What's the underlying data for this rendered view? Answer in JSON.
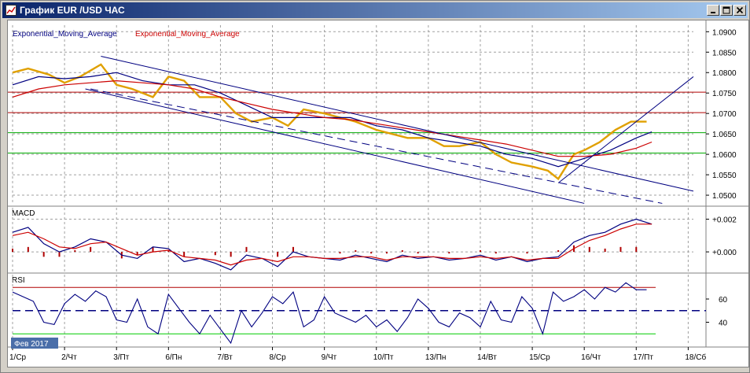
{
  "window": {
    "title": "График EUR /USD  ЧАС",
    "controls": [
      "minimize",
      "maximize",
      "close"
    ]
  },
  "indicators_legend": [
    "Exponential_Moving_Average",
    "Exponential_Moving_Average"
  ],
  "colors": {
    "price": "#e0a000",
    "ema_fast": "#000080",
    "ema_slow": "#cc0000",
    "channel": "#000080",
    "level_red": "#b00000",
    "level_green": "#00aa00",
    "macd_line": "#000080",
    "macd_signal": "#cc0000",
    "macd_hist": "#b00000",
    "rsi_line": "#000080",
    "rsi_oversold": "#00cc00",
    "date_badge": "#4a6ea9"
  },
  "chart_data": [
    {
      "type": "line",
      "name": "price_panel",
      "y_ticks": [
        "1.0900",
        "1.0850",
        "1.0800",
        "1.0750",
        "1.0700",
        "1.0650",
        "1.0600",
        "1.0550",
        "1.0500"
      ],
      "ylim": [
        1.0477,
        1.0916
      ],
      "xlim": [
        0,
        13.1
      ],
      "horizontal_levels": [
        {
          "value": 1.0752,
          "color": "red"
        },
        {
          "value": 1.0702,
          "color": "red"
        },
        {
          "value": 1.0653,
          "color": "green"
        },
        {
          "value": 1.0603,
          "color": "green"
        }
      ],
      "series": [
        {
          "key": "price",
          "x": [
            0.0,
            0.3,
            0.7,
            1.0,
            1.3,
            1.7,
            2.0,
            2.3,
            2.7,
            3.0,
            3.3,
            3.6,
            4.0,
            4.3,
            4.6,
            5.0,
            5.3,
            5.6,
            6.0,
            6.3,
            6.6,
            7.0,
            7.3,
            7.6,
            8.0,
            8.3,
            8.6,
            9.0,
            9.3,
            9.6,
            10.0,
            10.3,
            10.5,
            10.8,
            11.0,
            11.3,
            11.6,
            11.9,
            12.2
          ],
          "values": [
            1.08,
            1.081,
            1.0795,
            1.0775,
            1.079,
            1.082,
            1.077,
            1.076,
            1.074,
            1.079,
            1.078,
            1.074,
            1.074,
            1.07,
            1.068,
            1.069,
            1.067,
            1.071,
            1.07,
            1.069,
            1.068,
            1.066,
            1.065,
            1.064,
            1.064,
            1.062,
            1.062,
            1.063,
            1.06,
            1.058,
            1.057,
            1.056,
            1.054,
            1.06,
            1.061,
            1.063,
            1.066,
            1.068,
            1.068
          ]
        },
        {
          "key": "ema_fast",
          "x": [
            0.0,
            0.5,
            1.0,
            1.5,
            2.0,
            2.5,
            3.0,
            3.5,
            4.0,
            4.5,
            5.0,
            5.5,
            6.0,
            6.5,
            7.0,
            7.5,
            8.0,
            8.5,
            9.0,
            9.5,
            10.0,
            10.5,
            11.0,
            11.5,
            12.0,
            12.3
          ],
          "values": [
            1.077,
            1.079,
            1.0785,
            1.079,
            1.08,
            1.078,
            1.077,
            1.077,
            1.075,
            1.072,
            1.069,
            1.069,
            1.069,
            1.069,
            1.067,
            1.066,
            1.064,
            1.063,
            1.062,
            1.06,
            1.059,
            1.057,
            1.059,
            1.061,
            1.064,
            1.0655
          ]
        },
        {
          "key": "ema_slow",
          "x": [
            0.0,
            0.5,
            1.0,
            1.5,
            2.0,
            2.5,
            3.0,
            3.5,
            4.0,
            4.5,
            5.0,
            5.5,
            6.0,
            6.5,
            7.0,
            7.5,
            8.0,
            8.5,
            9.0,
            9.5,
            10.0,
            10.5,
            11.0,
            11.5,
            12.0,
            12.3
          ],
          "values": [
            1.074,
            1.076,
            1.077,
            1.0775,
            1.078,
            1.0775,
            1.077,
            1.076,
            1.074,
            1.0725,
            1.071,
            1.07,
            1.069,
            1.0685,
            1.0675,
            1.0665,
            1.0655,
            1.0645,
            1.0635,
            1.0625,
            1.061,
            1.0595,
            1.0595,
            1.06,
            1.0615,
            1.063
          ]
        }
      ],
      "trend_lines": [
        {
          "x": [
            1.7,
            13.1
          ],
          "values": [
            1.084,
            1.051
          ],
          "style": "solid"
        },
        {
          "x": [
            1.5,
            12.5
          ],
          "values": [
            1.076,
            1.048
          ],
          "style": "dashed"
        },
        {
          "x": [
            1.4,
            11.0
          ],
          "values": [
            1.076,
            1.048
          ],
          "style": "solid"
        },
        {
          "x": [
            10.5,
            13.1
          ],
          "values": [
            1.053,
            1.079
          ],
          "style": "solid"
        }
      ]
    },
    {
      "type": "line",
      "name": "MACD",
      "title": "MACD",
      "y_ticks": [
        "+0.002",
        "+0.000"
      ],
      "ylim": [
        -0.0012,
        0.0027
      ],
      "xlim": [
        0,
        13.1
      ],
      "series": [
        {
          "key": "macd",
          "x": [
            0.0,
            0.3,
            0.6,
            0.9,
            1.2,
            1.5,
            1.8,
            2.1,
            2.4,
            2.7,
            3.0,
            3.3,
            3.6,
            3.9,
            4.2,
            4.5,
            4.8,
            5.1,
            5.4,
            5.7,
            6.0,
            6.3,
            6.6,
            6.9,
            7.2,
            7.5,
            7.8,
            8.1,
            8.4,
            8.7,
            9.0,
            9.3,
            9.6,
            9.9,
            10.2,
            10.5,
            10.8,
            11.1,
            11.4,
            11.7,
            12.0,
            12.3
          ],
          "values": [
            0.0012,
            0.0015,
            0.0005,
            0.0,
            0.0003,
            0.0008,
            0.0006,
            -0.0002,
            -0.0004,
            0.0003,
            0.0002,
            -0.0006,
            -0.0004,
            -0.0007,
            -0.0011,
            -0.0002,
            -0.0004,
            -0.0009,
            0.0,
            -0.0003,
            -0.0004,
            -0.0005,
            -0.0002,
            -0.0004,
            -0.0006,
            -0.0002,
            -0.0004,
            -0.0003,
            -0.0005,
            -0.0004,
            -0.0002,
            -0.0005,
            -0.0003,
            -0.0006,
            -0.0004,
            -0.0003,
            0.0006,
            0.001,
            0.0012,
            0.0017,
            0.002,
            0.0017
          ]
        },
        {
          "key": "signal",
          "x": [
            0.0,
            0.3,
            0.6,
            0.9,
            1.2,
            1.5,
            1.8,
            2.1,
            2.4,
            2.7,
            3.0,
            3.3,
            3.6,
            3.9,
            4.2,
            4.5,
            4.8,
            5.1,
            5.4,
            5.7,
            6.0,
            6.3,
            6.6,
            6.9,
            7.2,
            7.5,
            7.8,
            8.1,
            8.4,
            8.7,
            9.0,
            9.3,
            9.6,
            9.9,
            10.2,
            10.5,
            10.8,
            11.1,
            11.4,
            11.7,
            12.0,
            12.3
          ],
          "values": [
            0.001,
            0.0012,
            0.0008,
            0.0003,
            0.0002,
            0.0005,
            0.0006,
            0.0002,
            -0.0002,
            0.0,
            0.0001,
            -0.0003,
            -0.0004,
            -0.0005,
            -0.0008,
            -0.0005,
            -0.0004,
            -0.0006,
            -0.0003,
            -0.0003,
            -0.0004,
            -0.0004,
            -0.0003,
            -0.0003,
            -0.0005,
            -0.0003,
            -0.0003,
            -0.0003,
            -0.0004,
            -0.0004,
            -0.0003,
            -0.0004,
            -0.0003,
            -0.0005,
            -0.0004,
            -0.0004,
            0.0002,
            0.0007,
            0.001,
            0.0014,
            0.0017,
            0.0017
          ]
        }
      ]
    },
    {
      "type": "line",
      "name": "RSI",
      "title": "RSI",
      "y_ticks": [
        "60",
        "40"
      ],
      "ylim": [
        20,
        81
      ],
      "xlim": [
        0,
        13.1
      ],
      "levels": [
        {
          "value": 70,
          "color": "red"
        },
        {
          "value": 50,
          "color": "navy",
          "style": "dashed"
        },
        {
          "value": 30,
          "color": "green"
        }
      ],
      "series": [
        {
          "key": "rsi",
          "x": [
            0.0,
            0.2,
            0.4,
            0.6,
            0.8,
            1.0,
            1.2,
            1.4,
            1.6,
            1.8,
            2.0,
            2.2,
            2.4,
            2.6,
            2.8,
            3.0,
            3.2,
            3.4,
            3.6,
            3.8,
            4.0,
            4.2,
            4.4,
            4.6,
            4.8,
            5.0,
            5.2,
            5.4,
            5.6,
            5.8,
            6.0,
            6.2,
            6.4,
            6.6,
            6.8,
            7.0,
            7.2,
            7.4,
            7.6,
            7.8,
            8.0,
            8.2,
            8.4,
            8.6,
            8.8,
            9.0,
            9.2,
            9.4,
            9.6,
            9.8,
            10.0,
            10.2,
            10.4,
            10.6,
            10.8,
            11.0,
            11.2,
            11.4,
            11.6,
            11.8,
            12.0,
            12.2
          ],
          "values": [
            66,
            62,
            58,
            40,
            38,
            56,
            64,
            58,
            67,
            62,
            42,
            40,
            60,
            36,
            30,
            64,
            52,
            40,
            30,
            46,
            34,
            22,
            50,
            36,
            48,
            62,
            56,
            66,
            36,
            42,
            62,
            48,
            44,
            40,
            46,
            36,
            42,
            32,
            44,
            60,
            52,
            40,
            36,
            48,
            44,
            36,
            58,
            42,
            40,
            62,
            52,
            30,
            66,
            58,
            62,
            68,
            60,
            70,
            66,
            74,
            68,
            68
          ]
        }
      ]
    }
  ],
  "time_axis": {
    "labels": [
      "1/Ср",
      "2/Чт",
      "3/Пт",
      "6/Пн",
      "7/Вт",
      "8/Ср",
      "9/Чт",
      "10/Пт",
      "13/Пн",
      "14/Вт",
      "15/Ср",
      "16/Чт",
      "17/Пт",
      "18/Сб"
    ],
    "badge": "Фев 2017"
  }
}
